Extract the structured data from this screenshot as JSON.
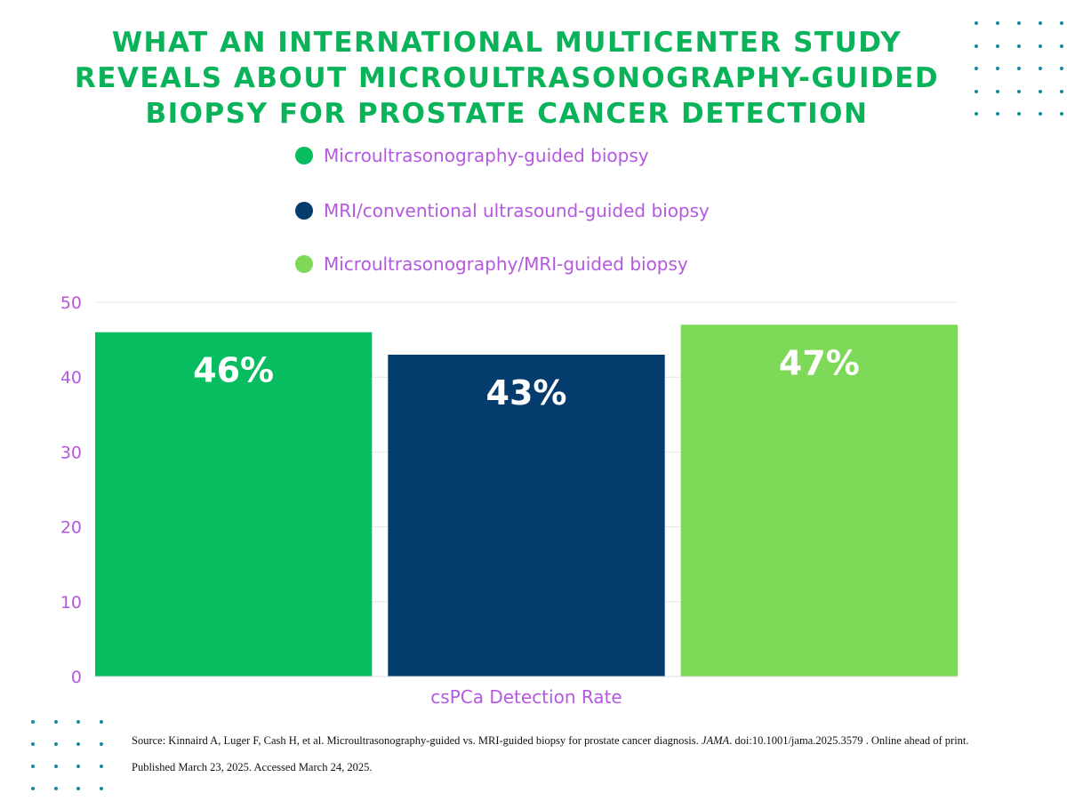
{
  "title_lines": [
    "WHAT AN INTERNATIONAL MULTICENTER STUDY",
    "REVEALS ABOUT MICROULTRASONOGRAPHY-GUIDED",
    "BIOPSY FOR PROSTATE CANCER DETECTION"
  ],
  "colors": {
    "title": "#0ab35a",
    "axis_text": "#b558e0",
    "dots": "#138a9c"
  },
  "chart_data": {
    "type": "bar",
    "categories": [
      "csPCa Detection Rate"
    ],
    "series": [
      {
        "name": "Microultrasonography-guided biopsy",
        "values": [
          46
        ],
        "label": "46%",
        "color": "#07bd5f"
      },
      {
        "name": "MRI/conventional ultrasound-guided biopsy",
        "values": [
          43
        ],
        "label": "43%",
        "color": "#043c6e"
      },
      {
        "name": "Microultrasonography/MRI-guided biopsy",
        "values": [
          47
        ],
        "label": "47%",
        "color": "#7dd957"
      }
    ],
    "xlabel": "csPCa Detection Rate",
    "ylabel": "",
    "ylim": [
      0,
      50
    ],
    "yticks": [
      0,
      10,
      20,
      30,
      40,
      50
    ],
    "grid": true,
    "legend_position": "top"
  },
  "source": {
    "prefix": "Source: Kinnaird A, Luger F, Cash H, et al. Microultrasonography-guided vs. MRI-guided biopsy for prostate cancer diagnosis. ",
    "journal": "JAMA",
    "suffix": ". doi:10.1001/jama.2025.3579 . Online ahead of print. Published March 23, 2025. Accessed March 24, 2025."
  }
}
